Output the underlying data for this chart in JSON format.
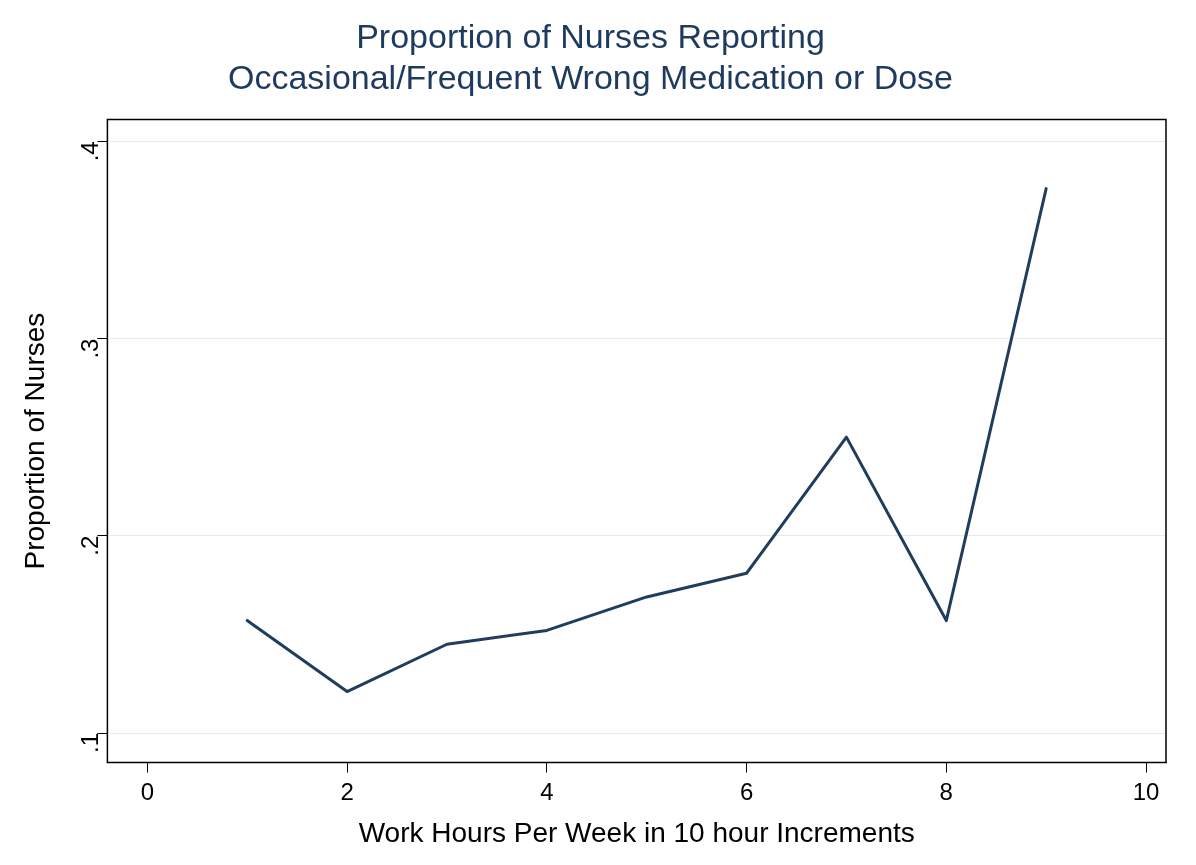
{
  "chart_data": {
    "type": "line",
    "title": "Proportion of Nurses Reporting\nOccasional/Frequent Wrong Medication or Dose",
    "xlabel": "Work Hours Per Week in 10 hour Increments",
    "ylabel": "Proportion of Nurses",
    "x": [
      1,
      2,
      3,
      4,
      5,
      6,
      7,
      8,
      9
    ],
    "series": [
      {
        "color": "#1f3d5c",
        "values": [
          0.157,
          0.121,
          0.145,
          0.152,
          0.169,
          0.181,
          0.25,
          0.157,
          0.376
        ]
      }
    ],
    "xlim": [
      -0.4,
      10.2
    ],
    "xticks": [
      0,
      2,
      4,
      6,
      8,
      10
    ],
    "ylim": [
      0.085,
      0.411
    ],
    "yticks": [
      {
        "value": 0.1,
        "label": ".1"
      },
      {
        "value": 0.2,
        "label": ".2"
      },
      {
        "value": 0.3,
        "label": ".3"
      },
      {
        "value": 0.4,
        "label": ".4"
      }
    ],
    "grid": "y",
    "legend": false,
    "marker": "none",
    "line_style": "solid"
  }
}
